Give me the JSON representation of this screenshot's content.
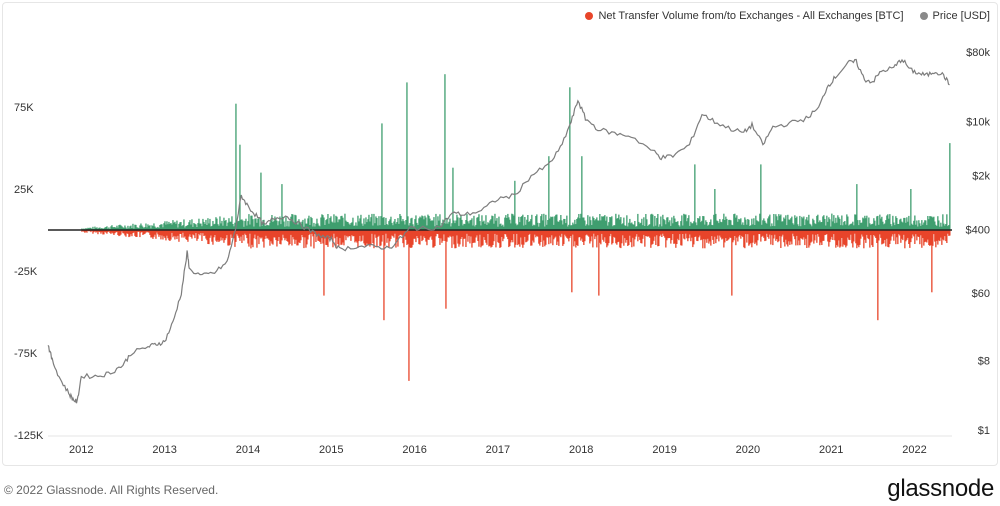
{
  "legend": {
    "net_label": "Net Transfer Volume from/to Exchanges - All Exchanges [BTC]",
    "price_label": "Price [USD]"
  },
  "colors": {
    "inflow": "#e8452a",
    "outflow": "#3f9e6f",
    "price": "#7d7d7d",
    "legend_price_dot": "#8a8a8a"
  },
  "footer": {
    "copyright": "© 2022 Glassnode. All Rights Reserved.",
    "brand": "glassnode"
  },
  "chart_data": {
    "type": "bar",
    "xlabel": "",
    "ylabel_left": "",
    "ylabel_right": "",
    "x_ticks": [
      "2012",
      "2013",
      "2014",
      "2015",
      "2016",
      "2017",
      "2018",
      "2019",
      "2020",
      "2021",
      "2022"
    ],
    "y_left_ticks": [
      {
        "label": "75K",
        "value": 75000
      },
      {
        "label": "25K",
        "value": 25000
      },
      {
        "label": "-25K",
        "value": -25000
      },
      {
        "label": "-75K",
        "value": -75000
      },
      {
        "label": "-125K",
        "value": -125000
      }
    ],
    "y_right_ticks": [
      {
        "label": "$80k",
        "value": 80000
      },
      {
        "label": "$10k",
        "value": 10000
      },
      {
        "label": "$2k",
        "value": 2000
      },
      {
        "label": "$400",
        "value": 400
      },
      {
        "label": "$60",
        "value": 60
      },
      {
        "label": "$8",
        "value": 8
      },
      {
        "label": "$1",
        "value": 1
      }
    ],
    "y_left_range": [
      -125000,
      125000
    ],
    "y_right_scale": "log",
    "y_right_range": [
      1,
      80000
    ],
    "x_range": [
      2011.6,
      2022.45
    ],
    "grid": false,
    "legend_position": "top-right",
    "series": [
      {
        "name": "Net Transfer Volume from/to Exchanges - All Exchanges [BTC]",
        "kind": "bar",
        "spikes": [
          [
            2013.85,
            77000
          ],
          [
            2013.9,
            52000
          ],
          [
            2014.15,
            35000
          ],
          [
            2014.4,
            28000
          ],
          [
            2014.9,
            -40000
          ],
          [
            2015.6,
            65000
          ],
          [
            2015.62,
            -55000
          ],
          [
            2015.9,
            90000
          ],
          [
            2015.92,
            -92000
          ],
          [
            2016.35,
            95000
          ],
          [
            2016.37,
            -48000
          ],
          [
            2016.45,
            38000
          ],
          [
            2017.2,
            30000
          ],
          [
            2017.6,
            45000
          ],
          [
            2017.85,
            87000
          ],
          [
            2017.88,
            -38000
          ],
          [
            2018.0,
            45000
          ],
          [
            2018.2,
            -40000
          ],
          [
            2019.35,
            40000
          ],
          [
            2019.6,
            25000
          ],
          [
            2019.8,
            -40000
          ],
          [
            2020.15,
            40000
          ],
          [
            2021.3,
            28000
          ],
          [
            2021.55,
            -55000
          ],
          [
            2021.95,
            25000
          ],
          [
            2022.2,
            -38000
          ],
          [
            2022.42,
            53000
          ]
        ],
        "baseline_amplitude_pos": 8000,
        "baseline_amplitude_neg": -9000
      },
      {
        "name": "Price [USD]",
        "kind": "line",
        "points": [
          [
            2011.6,
            13
          ],
          [
            2011.65,
            8
          ],
          [
            2011.75,
            4.5
          ],
          [
            2011.85,
            3
          ],
          [
            2011.9,
            2.5
          ],
          [
            2011.95,
            2.3
          ],
          [
            2012.0,
            5
          ],
          [
            2012.2,
            5
          ],
          [
            2012.35,
            5.5
          ],
          [
            2012.5,
            7
          ],
          [
            2012.6,
            10
          ],
          [
            2012.8,
            12
          ],
          [
            2012.9,
            13
          ],
          [
            2013.0,
            14
          ],
          [
            2013.1,
            25
          ],
          [
            2013.2,
            60
          ],
          [
            2013.27,
            200
          ],
          [
            2013.3,
            120
          ],
          [
            2013.45,
            100
          ],
          [
            2013.6,
            110
          ],
          [
            2013.75,
            150
          ],
          [
            2013.85,
            400
          ],
          [
            2013.92,
            1100
          ],
          [
            2014.0,
            800
          ],
          [
            2014.1,
            600
          ],
          [
            2014.2,
            450
          ],
          [
            2014.3,
            550
          ],
          [
            2014.45,
            600
          ],
          [
            2014.6,
            480
          ],
          [
            2014.75,
            380
          ],
          [
            2014.9,
            320
          ],
          [
            2015.0,
            300
          ],
          [
            2015.1,
            220
          ],
          [
            2015.3,
            240
          ],
          [
            2015.5,
            240
          ],
          [
            2015.7,
            230
          ],
          [
            2015.85,
            320
          ],
          [
            2015.95,
            420
          ],
          [
            2016.1,
            410
          ],
          [
            2016.3,
            430
          ],
          [
            2016.45,
            650
          ],
          [
            2016.6,
            620
          ],
          [
            2016.8,
            700
          ],
          [
            2017.0,
            1000
          ],
          [
            2017.2,
            1100
          ],
          [
            2017.4,
            2000
          ],
          [
            2017.6,
            2700
          ],
          [
            2017.75,
            4500
          ],
          [
            2017.88,
            10000
          ],
          [
            2017.96,
            19000
          ],
          [
            2018.05,
            11000
          ],
          [
            2018.2,
            8000
          ],
          [
            2018.4,
            7000
          ],
          [
            2018.6,
            6500
          ],
          [
            2018.88,
            4000
          ],
          [
            2018.96,
            3400
          ],
          [
            2019.1,
            3600
          ],
          [
            2019.3,
            5000
          ],
          [
            2019.45,
            12500
          ],
          [
            2019.6,
            10000
          ],
          [
            2019.8,
            8000
          ],
          [
            2019.95,
            7200
          ],
          [
            2020.05,
            9000
          ],
          [
            2020.18,
            5000
          ],
          [
            2020.3,
            8500
          ],
          [
            2020.5,
            9500
          ],
          [
            2020.7,
            11000
          ],
          [
            2020.85,
            15000
          ],
          [
            2020.95,
            28000
          ],
          [
            2021.05,
            38000
          ],
          [
            2021.2,
            58000
          ],
          [
            2021.3,
            60000
          ],
          [
            2021.4,
            35000
          ],
          [
            2021.5,
            33000
          ],
          [
            2021.6,
            45000
          ],
          [
            2021.75,
            50000
          ],
          [
            2021.85,
            65000
          ],
          [
            2021.95,
            47000
          ],
          [
            2022.05,
            42000
          ],
          [
            2022.15,
            40000
          ],
          [
            2022.25,
            45000
          ],
          [
            2022.35,
            40000
          ],
          [
            2022.42,
            30000
          ]
        ]
      }
    ]
  }
}
